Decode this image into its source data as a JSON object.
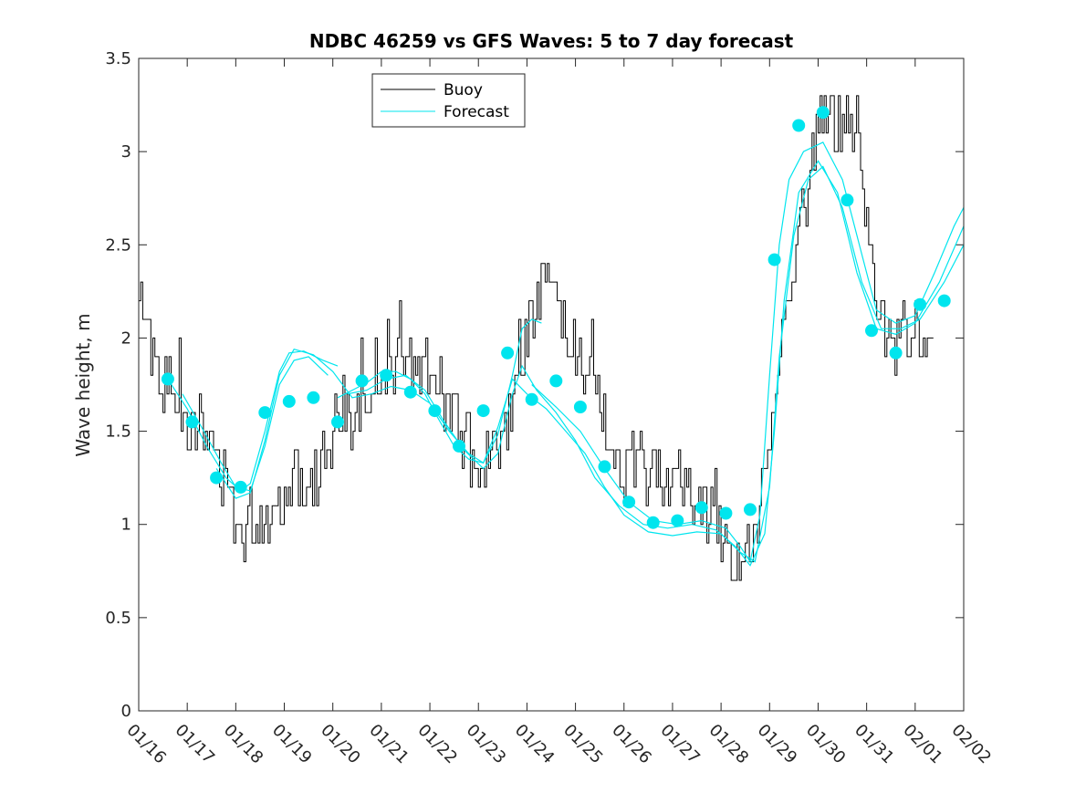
{
  "chart_data": {
    "type": "line",
    "title": "NDBC 46259 vs GFS Waves: 5 to 7 day forecast",
    "xlabel": "",
    "ylabel": "Wave height, m",
    "xlim": [
      0,
      17
    ],
    "ylim": [
      0,
      3.5
    ],
    "xtick_labels": [
      "01/16",
      "01/17",
      "01/18",
      "01/19",
      "01/20",
      "01/21",
      "01/22",
      "01/23",
      "01/24",
      "01/25",
      "01/26",
      "01/27",
      "01/28",
      "01/29",
      "01/30",
      "01/31",
      "02/01",
      "02/02"
    ],
    "ytick_values": [
      0,
      0.5,
      1,
      1.5,
      2,
      2.5,
      3,
      3.5
    ],
    "ytick_labels": [
      "0",
      "0.5",
      "1",
      "1.5",
      "2",
      "2.5",
      "3",
      "3.5"
    ],
    "legend": {
      "location": "top-left-center",
      "entries": [
        "Buoy",
        "Forecast"
      ]
    },
    "colors": {
      "buoy": "#000000",
      "forecast": "#00e5ee",
      "axis": "#262626"
    },
    "buoy_anchors": [
      [
        0.0,
        2.15
      ],
      [
        0.1,
        2.3
      ],
      [
        0.2,
        2.0
      ],
      [
        0.35,
        1.9
      ],
      [
        0.5,
        1.75
      ],
      [
        0.7,
        1.7
      ],
      [
        0.9,
        1.6
      ],
      [
        1.1,
        1.55
      ],
      [
        1.3,
        1.5
      ],
      [
        1.5,
        1.4
      ],
      [
        1.7,
        1.25
      ],
      [
        1.9,
        1.1
      ],
      [
        2.1,
        1.0
      ],
      [
        2.3,
        1.0
      ],
      [
        2.5,
        1.05
      ],
      [
        2.7,
        1.05
      ],
      [
        2.9,
        1.1
      ],
      [
        3.0,
        1.2
      ],
      [
        3.2,
        1.25
      ],
      [
        3.4,
        1.25
      ],
      [
        3.6,
        1.25
      ],
      [
        3.8,
        1.35
      ],
      [
        4.0,
        1.45
      ],
      [
        4.2,
        1.6
      ],
      [
        4.4,
        1.55
      ],
      [
        4.6,
        1.6
      ],
      [
        4.8,
        1.75
      ],
      [
        5.0,
        1.85
      ],
      [
        5.2,
        1.9
      ],
      [
        5.4,
        1.85
      ],
      [
        5.6,
        1.8
      ],
      [
        5.8,
        1.85
      ],
      [
        6.0,
        1.8
      ],
      [
        6.2,
        1.7
      ],
      [
        6.4,
        1.6
      ],
      [
        6.6,
        1.5
      ],
      [
        6.8,
        1.4
      ],
      [
        7.0,
        1.35
      ],
      [
        7.2,
        1.4
      ],
      [
        7.4,
        1.45
      ],
      [
        7.6,
        1.6
      ],
      [
        7.8,
        1.8
      ],
      [
        8.0,
        2.0
      ],
      [
        8.2,
        2.2
      ],
      [
        8.4,
        2.3
      ],
      [
        8.6,
        2.2
      ],
      [
        8.8,
        2.1
      ],
      [
        9.0,
        1.9
      ],
      [
        9.2,
        1.75
      ],
      [
        9.4,
        1.65
      ],
      [
        9.6,
        1.5
      ],
      [
        9.8,
        1.35
      ],
      [
        10.0,
        1.3
      ],
      [
        10.2,
        1.3
      ],
      [
        10.4,
        1.3
      ],
      [
        10.6,
        1.3
      ],
      [
        10.8,
        1.25
      ],
      [
        11.0,
        1.25
      ],
      [
        11.2,
        1.2
      ],
      [
        11.4,
        1.15
      ],
      [
        11.6,
        1.1
      ],
      [
        11.8,
        1.05
      ],
      [
        12.0,
        0.95
      ],
      [
        12.2,
        0.85
      ],
      [
        12.4,
        0.8
      ],
      [
        12.6,
        0.85
      ],
      [
        12.8,
        1.1
      ],
      [
        13.0,
        1.5
      ],
      [
        13.2,
        1.9
      ],
      [
        13.4,
        2.3
      ],
      [
        13.6,
        2.6
      ],
      [
        13.8,
        2.8
      ],
      [
        14.0,
        3.1
      ],
      [
        14.2,
        3.25
      ],
      [
        14.4,
        3.1
      ],
      [
        14.6,
        3.2
      ],
      [
        14.8,
        3.0
      ],
      [
        15.0,
        2.6
      ],
      [
        15.2,
        2.2
      ],
      [
        15.4,
        2.0
      ],
      [
        15.6,
        1.95
      ],
      [
        15.8,
        2.0
      ],
      [
        16.0,
        2.05
      ],
      [
        16.2,
        1.95
      ],
      [
        16.4,
        1.85
      ]
    ],
    "forecast_markers": [
      [
        0.6,
        1.78
      ],
      [
        1.1,
        1.55
      ],
      [
        1.6,
        1.25
      ],
      [
        2.1,
        1.2
      ],
      [
        2.6,
        1.6
      ],
      [
        3.1,
        1.66
      ],
      [
        3.6,
        1.68
      ],
      [
        4.1,
        1.55
      ],
      [
        4.6,
        1.77
      ],
      [
        5.1,
        1.8
      ],
      [
        5.6,
        1.71
      ],
      [
        6.1,
        1.61
      ],
      [
        6.6,
        1.42
      ],
      [
        7.1,
        1.61
      ],
      [
        7.6,
        1.92
      ],
      [
        8.1,
        1.67
      ],
      [
        8.6,
        1.77
      ],
      [
        9.1,
        1.63
      ],
      [
        9.6,
        1.31
      ],
      [
        10.1,
        1.12
      ],
      [
        10.6,
        1.01
      ],
      [
        11.1,
        1.02
      ],
      [
        11.6,
        1.09
      ],
      [
        12.1,
        1.06
      ],
      [
        12.6,
        1.08
      ],
      [
        13.1,
        2.42
      ],
      [
        13.6,
        3.14
      ],
      [
        14.1,
        3.21
      ],
      [
        14.6,
        2.74
      ],
      [
        15.1,
        2.04
      ],
      [
        15.6,
        1.92
      ],
      [
        16.1,
        2.18
      ],
      [
        16.6,
        2.2
      ]
    ],
    "forecast_lines": [
      [
        [
          0.6,
          1.78
        ],
        [
          1.0,
          1.62
        ],
        [
          1.4,
          1.42
        ],
        [
          1.8,
          1.25
        ],
        [
          2.1,
          1.18
        ],
        [
          2.3,
          1.22
        ],
        [
          2.6,
          1.5
        ],
        [
          2.9,
          1.82
        ],
        [
          3.1,
          1.92
        ],
        [
          3.4,
          1.93
        ],
        [
          3.8,
          1.88
        ],
        [
          4.1,
          1.85
        ]
      ],
      [
        [
          4.1,
          1.68
        ],
        [
          4.4,
          1.72
        ],
        [
          4.7,
          1.76
        ],
        [
          5.0,
          1.82
        ],
        [
          5.3,
          1.82
        ],
        [
          5.6,
          1.78
        ],
        [
          5.9,
          1.7
        ],
        [
          6.1,
          1.6
        ],
        [
          6.5,
          1.42
        ],
        [
          6.8,
          1.35
        ],
        [
          7.1,
          1.33
        ],
        [
          7.4,
          1.48
        ],
        [
          7.7,
          1.8
        ],
        [
          7.9,
          2.05
        ],
        [
          8.1,
          2.1
        ],
        [
          8.3,
          2.08
        ]
      ],
      [
        [
          8.1,
          1.75
        ],
        [
          8.6,
          1.63
        ],
        [
          9.1,
          1.5
        ],
        [
          9.6,
          1.3
        ],
        [
          10.1,
          1.12
        ],
        [
          10.6,
          1.02
        ],
        [
          11.1,
          1.0
        ],
        [
          11.6,
          1.02
        ],
        [
          12.1,
          0.98
        ],
        [
          12.4,
          0.88
        ],
        [
          12.6,
          0.8
        ],
        [
          12.8,
          1.05
        ],
        [
          13.0,
          1.8
        ],
        [
          13.2,
          2.5
        ],
        [
          13.4,
          2.85
        ],
        [
          13.7,
          3.0
        ],
        [
          14.1,
          3.05
        ],
        [
          14.5,
          2.85
        ],
        [
          14.9,
          2.45
        ],
        [
          15.2,
          2.15
        ],
        [
          15.6,
          2.08
        ],
        [
          16.0,
          2.12
        ],
        [
          16.4,
          2.35
        ],
        [
          16.8,
          2.6
        ],
        [
          17.0,
          2.7
        ]
      ],
      [
        [
          0.9,
          1.7
        ],
        [
          1.3,
          1.52
        ],
        [
          1.7,
          1.33
        ],
        [
          2.0,
          1.2
        ],
        [
          2.3,
          1.18
        ],
        [
          2.6,
          1.42
        ],
        [
          2.9,
          1.75
        ],
        [
          3.2,
          1.88
        ],
        [
          3.5,
          1.9
        ],
        [
          3.9,
          1.8
        ]
      ],
      [
        [
          4.3,
          1.7
        ],
        [
          4.7,
          1.72
        ],
        [
          5.1,
          1.78
        ],
        [
          5.5,
          1.8
        ],
        [
          5.9,
          1.72
        ],
        [
          6.3,
          1.55
        ],
        [
          6.7,
          1.4
        ],
        [
          7.1,
          1.3
        ],
        [
          7.4,
          1.38
        ],
        [
          7.7,
          1.7
        ],
        [
          7.9,
          1.85
        ],
        [
          8.2,
          1.72
        ],
        [
          8.6,
          1.6
        ],
        [
          9.0,
          1.45
        ],
        [
          9.4,
          1.25
        ],
        [
          9.9,
          1.1
        ],
        [
          10.4,
          1.0
        ],
        [
          10.9,
          0.98
        ],
        [
          11.4,
          1.0
        ],
        [
          11.9,
          0.97
        ],
        [
          12.3,
          0.88
        ],
        [
          12.6,
          0.78
        ],
        [
          12.9,
          0.95
        ],
        [
          13.1,
          1.5
        ],
        [
          13.3,
          2.2
        ],
        [
          13.6,
          2.78
        ],
        [
          14.0,
          2.95
        ],
        [
          14.4,
          2.78
        ],
        [
          14.8,
          2.35
        ],
        [
          15.2,
          2.05
        ],
        [
          15.6,
          2.02
        ],
        [
          16.0,
          2.08
        ],
        [
          16.5,
          2.3
        ],
        [
          17.0,
          2.6
        ]
      ],
      [
        [
          1.6,
          1.3
        ],
        [
          2.0,
          1.14
        ],
        [
          2.3,
          1.17
        ],
        [
          2.6,
          1.45
        ],
        [
          2.9,
          1.8
        ],
        [
          3.2,
          1.94
        ],
        [
          3.6,
          1.91
        ],
        [
          4.0,
          1.82
        ],
        [
          4.4,
          1.68
        ],
        [
          4.8,
          1.7
        ],
        [
          5.2,
          1.74
        ],
        [
          5.6,
          1.72
        ],
        [
          6.0,
          1.65
        ],
        [
          6.4,
          1.5
        ],
        [
          6.8,
          1.38
        ],
        [
          7.1,
          1.33
        ],
        [
          7.4,
          1.52
        ],
        [
          7.7,
          1.78
        ],
        [
          8.0,
          1.7
        ],
        [
          8.4,
          1.62
        ],
        [
          8.8,
          1.5
        ],
        [
          9.2,
          1.38
        ],
        [
          9.6,
          1.2
        ],
        [
          10.0,
          1.05
        ],
        [
          10.5,
          0.96
        ],
        [
          11.0,
          0.94
        ],
        [
          11.5,
          0.96
        ],
        [
          12.0,
          0.95
        ],
        [
          12.4,
          0.85
        ],
        [
          12.7,
          0.8
        ],
        [
          13.0,
          1.2
        ],
        [
          13.2,
          1.9
        ],
        [
          13.5,
          2.55
        ],
        [
          13.8,
          2.85
        ],
        [
          14.1,
          2.92
        ],
        [
          14.5,
          2.7
        ],
        [
          14.9,
          2.3
        ],
        [
          15.3,
          2.05
        ],
        [
          15.7,
          2.05
        ],
        [
          16.1,
          2.1
        ],
        [
          16.6,
          2.3
        ],
        [
          17.0,
          2.5
        ]
      ]
    ]
  }
}
